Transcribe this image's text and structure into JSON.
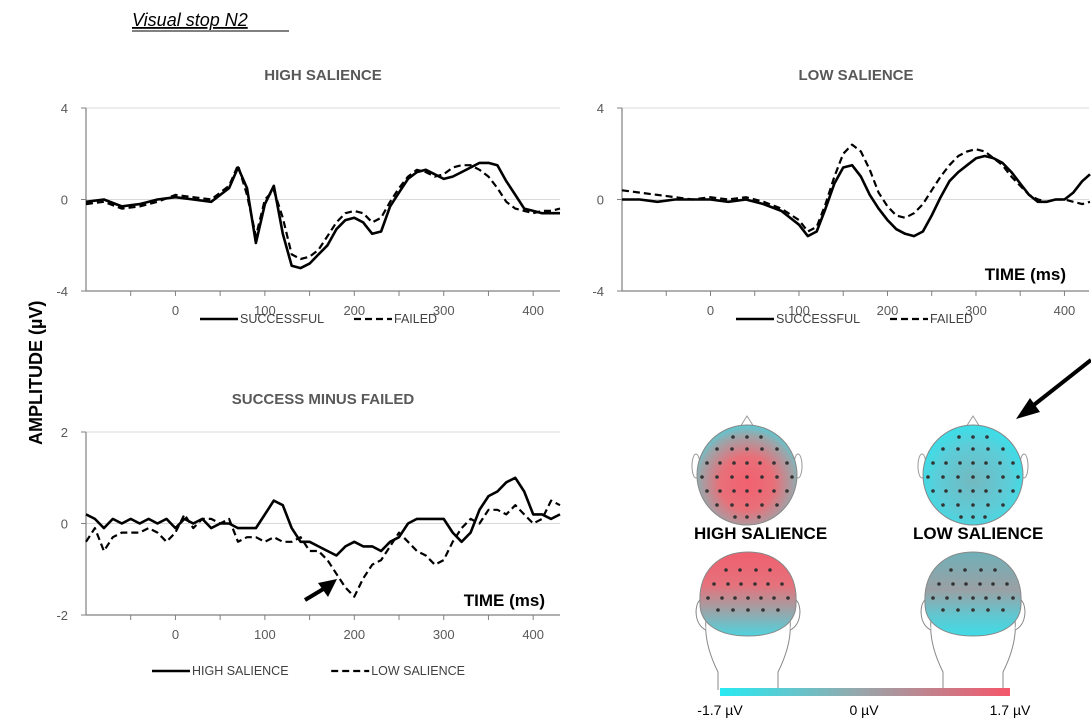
{
  "figure_title": "Visual stop N2",
  "y_axis_label": "AMPLITUDE (µV)",
  "colors": {
    "axis": "#808080",
    "grid": "#d9d9d9",
    "line": "#000000",
    "text": "#595959",
    "cold": "#28e6f0",
    "warm": "#f05c6e",
    "neutral": "#8c9a9e"
  },
  "chart_data": [
    {
      "type": "line",
      "title": "HIGH SALIENCE",
      "xlabel": "",
      "ylabel": "",
      "xlim": [
        -100,
        430
      ],
      "ylim": [
        -4,
        4
      ],
      "xticks": [
        0,
        100,
        200,
        300,
        400
      ],
      "yticks": [
        -4,
        0,
        4
      ],
      "legend": "bottom",
      "series": [
        {
          "name": "SUCCESSFUL",
          "style": "solid",
          "x": [
            -100,
            -80,
            -60,
            -40,
            -20,
            0,
            20,
            40,
            60,
            70,
            80,
            90,
            100,
            110,
            120,
            130,
            140,
            150,
            160,
            170,
            180,
            190,
            200,
            210,
            220,
            230,
            240,
            250,
            260,
            270,
            280,
            290,
            300,
            310,
            320,
            330,
            340,
            350,
            360,
            370,
            380,
            390,
            400,
            410,
            420,
            430
          ],
          "y": [
            -0.1,
            0.0,
            -0.3,
            -0.2,
            0.0,
            0.1,
            0.0,
            -0.1,
            0.5,
            1.4,
            0.5,
            -1.9,
            -0.2,
            0.6,
            -1.5,
            -2.9,
            -3.0,
            -2.8,
            -2.4,
            -2.0,
            -1.3,
            -0.9,
            -0.8,
            -1.0,
            -1.5,
            -1.4,
            -0.3,
            0.3,
            0.9,
            1.2,
            1.3,
            1.1,
            0.9,
            1.0,
            1.2,
            1.4,
            1.6,
            1.6,
            1.5,
            0.8,
            0.2,
            -0.4,
            -0.5,
            -0.6,
            -0.6,
            -0.6
          ]
        },
        {
          "name": "FAILED",
          "style": "dashed",
          "x": [
            -100,
            -80,
            -60,
            -40,
            -20,
            0,
            20,
            40,
            60,
            70,
            80,
            90,
            100,
            110,
            120,
            130,
            140,
            150,
            160,
            170,
            180,
            190,
            200,
            210,
            220,
            230,
            240,
            250,
            260,
            270,
            280,
            290,
            300,
            310,
            320,
            330,
            340,
            350,
            360,
            370,
            380,
            390,
            400,
            410,
            420,
            430
          ],
          "y": [
            -0.2,
            -0.1,
            -0.4,
            -0.3,
            -0.1,
            0.2,
            0.1,
            0.0,
            0.6,
            1.5,
            0.2,
            -1.6,
            0.0,
            0.4,
            -0.8,
            -2.4,
            -2.6,
            -2.5,
            -2.2,
            -1.6,
            -1.0,
            -0.6,
            -0.5,
            -0.6,
            -1.0,
            -0.8,
            -0.1,
            0.5,
            1.0,
            1.3,
            1.2,
            1.0,
            1.1,
            1.4,
            1.5,
            1.5,
            1.3,
            1.0,
            0.5,
            -0.1,
            -0.4,
            -0.5,
            -0.6,
            -0.5,
            -0.5,
            -0.4
          ]
        }
      ]
    },
    {
      "type": "line",
      "title": "LOW SALIENCE",
      "xlabel": "TIME (ms)",
      "ylabel": "",
      "xlim": [
        -100,
        430
      ],
      "ylim": [
        -4,
        4
      ],
      "xticks": [
        0,
        100,
        200,
        300,
        400
      ],
      "yticks": [
        -4,
        0,
        4
      ],
      "legend": "bottom",
      "series": [
        {
          "name": "SUCCESSFUL",
          "style": "solid",
          "x": [
            -100,
            -80,
            -60,
            -40,
            -20,
            0,
            20,
            40,
            60,
            80,
            100,
            110,
            120,
            130,
            140,
            150,
            160,
            170,
            180,
            190,
            200,
            210,
            220,
            230,
            240,
            250,
            260,
            270,
            280,
            290,
            300,
            310,
            320,
            330,
            340,
            350,
            360,
            370,
            380,
            390,
            400,
            410,
            420,
            430
          ],
          "y": [
            0.0,
            0.0,
            -0.1,
            0.0,
            0.0,
            0.0,
            -0.1,
            0.0,
            -0.2,
            -0.5,
            -1.1,
            -1.6,
            -1.4,
            -0.4,
            0.7,
            1.4,
            1.5,
            1.0,
            0.2,
            -0.4,
            -0.9,
            -1.3,
            -1.5,
            -1.6,
            -1.4,
            -0.7,
            0.1,
            0.8,
            1.2,
            1.5,
            1.8,
            1.9,
            1.8,
            1.6,
            1.2,
            0.7,
            0.2,
            -0.1,
            -0.1,
            0.0,
            0.0,
            0.3,
            0.8,
            1.1
          ]
        },
        {
          "name": "FAILED",
          "style": "dashed",
          "x": [
            -100,
            -80,
            -60,
            -40,
            -20,
            0,
            20,
            40,
            60,
            80,
            100,
            110,
            120,
            130,
            140,
            150,
            160,
            170,
            180,
            190,
            200,
            210,
            220,
            230,
            240,
            250,
            260,
            270,
            280,
            290,
            300,
            310,
            320,
            330,
            340,
            350,
            360,
            370,
            380,
            390,
            400,
            410,
            420,
            430
          ],
          "y": [
            0.4,
            0.3,
            0.2,
            0.1,
            0.0,
            0.1,
            0.0,
            0.1,
            -0.1,
            -0.4,
            -0.9,
            -1.4,
            -1.2,
            -0.2,
            1.0,
            2.0,
            2.4,
            2.1,
            1.3,
            0.3,
            -0.3,
            -0.7,
            -0.8,
            -0.6,
            -0.2,
            0.4,
            1.0,
            1.5,
            1.9,
            2.1,
            2.2,
            2.1,
            1.8,
            1.5,
            1.0,
            0.6,
            0.2,
            0.0,
            -0.1,
            0.0,
            0.0,
            -0.1,
            -0.2,
            -0.1
          ]
        }
      ]
    },
    {
      "type": "line",
      "title": "SUCCESS MINUS FAILED",
      "xlabel": "TIME (ms)",
      "ylabel": "",
      "xlim": [
        -100,
        430
      ],
      "ylim": [
        -2,
        2
      ],
      "xticks": [
        0,
        100,
        200,
        300,
        400
      ],
      "yticks": [
        -2,
        0,
        2
      ],
      "legend": "bottom",
      "series": [
        {
          "name": "HIGH SALIENCE",
          "style": "solid",
          "x": [
            -100,
            -90,
            -80,
            -70,
            -60,
            -50,
            -40,
            -30,
            -20,
            -10,
            0,
            10,
            20,
            30,
            40,
            50,
            60,
            70,
            80,
            90,
            100,
            110,
            120,
            130,
            140,
            150,
            160,
            170,
            180,
            190,
            200,
            210,
            220,
            230,
            240,
            250,
            260,
            270,
            280,
            290,
            300,
            310,
            320,
            330,
            340,
            350,
            360,
            370,
            380,
            390,
            400,
            410,
            420,
            430
          ],
          "y": [
            0.2,
            0.1,
            -0.1,
            0.1,
            0.0,
            0.1,
            0.0,
            0.1,
            0.0,
            0.1,
            -0.1,
            0.1,
            0.0,
            0.1,
            -0.1,
            0.0,
            0.0,
            -0.1,
            -0.1,
            -0.1,
            0.2,
            0.5,
            0.4,
            -0.1,
            -0.4,
            -0.4,
            -0.5,
            -0.6,
            -0.7,
            -0.5,
            -0.4,
            -0.5,
            -0.5,
            -0.6,
            -0.4,
            -0.3,
            0.0,
            0.1,
            0.1,
            0.1,
            0.1,
            -0.2,
            -0.4,
            -0.2,
            0.3,
            0.6,
            0.7,
            0.9,
            1.0,
            0.7,
            0.2,
            0.2,
            0.1,
            0.2
          ]
        },
        {
          "name": "LOW SALIENCE",
          "style": "dashed",
          "x": [
            -100,
            -90,
            -80,
            -70,
            -60,
            -50,
            -40,
            -30,
            -20,
            -10,
            0,
            10,
            20,
            30,
            40,
            50,
            60,
            70,
            80,
            90,
            100,
            110,
            120,
            130,
            140,
            150,
            160,
            170,
            180,
            190,
            200,
            210,
            220,
            230,
            240,
            250,
            260,
            270,
            280,
            290,
            300,
            310,
            320,
            330,
            340,
            350,
            360,
            370,
            380,
            390,
            400,
            410,
            420,
            430
          ],
          "y": [
            -0.4,
            -0.1,
            -0.6,
            -0.3,
            -0.2,
            -0.2,
            -0.2,
            -0.1,
            -0.2,
            -0.4,
            -0.2,
            0.2,
            -0.1,
            0.1,
            0.1,
            0.0,
            0.1,
            -0.4,
            -0.3,
            -0.3,
            -0.4,
            -0.3,
            -0.4,
            -0.4,
            -0.3,
            -0.6,
            -0.6,
            -0.8,
            -1.1,
            -1.4,
            -1.6,
            -1.2,
            -0.9,
            -0.8,
            -0.5,
            -0.2,
            -0.4,
            -0.6,
            -0.7,
            -0.9,
            -0.8,
            -0.4,
            -0.1,
            0.1,
            0.0,
            0.3,
            0.3,
            0.2,
            0.4,
            0.2,
            0.0,
            0.1,
            0.5,
            0.4
          ]
        }
      ]
    }
  ],
  "topomaps": {
    "high_label": "HIGH SALIENCE",
    "low_label": "LOW SALIENCE",
    "colorbar": {
      "min_label": "-1.7 µV",
      "mid_label": "0 µV",
      "max_label": "1.7 µV",
      "min": -1.7,
      "max": 1.7
    }
  }
}
